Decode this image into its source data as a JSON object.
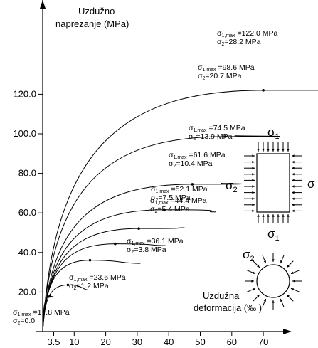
{
  "chart_data": {
    "type": "line",
    "ylabel_line1": "Uzdužno",
    "ylabel_line2": "naprezanje (MPa)",
    "xlabel_line1": "Uzdužna",
    "xlabel_line2": "deformacija (‰ )",
    "x_ticks": [
      "3.5",
      "10",
      "20",
      "30",
      "40",
      "50",
      "60",
      "70"
    ],
    "y_ticks": [
      "20.0",
      "40.0",
      "60.0",
      "80.0",
      "100.0",
      "120.0"
    ],
    "xlim": [
      0,
      75
    ],
    "ylim": [
      0,
      130
    ],
    "series": [
      {
        "sigma1_max": "17.8 MPa",
        "sigma2": "0.0",
        "peak": [
          2.2,
          17.8
        ],
        "end": [
          3.5,
          17.5
        ]
      },
      {
        "sigma1_max": "23.6 MPa",
        "sigma2": "1.2 MPa",
        "peak": [
          8.0,
          23.6
        ],
        "end": [
          15.0,
          21.0
        ]
      },
      {
        "sigma1_max": "36.1 MPa",
        "sigma2": "3.8 MPa",
        "peak": [
          15.0,
          36.1
        ],
        "end": [
          31.0,
          34.5
        ]
      },
      {
        "sigma1_max": "44.4 MPa",
        "sigma2": "5.4 MPa",
        "peak": [
          23.0,
          44.4
        ],
        "end": [
          39.0,
          43.5
        ]
      },
      {
        "sigma1_max": "52.1 MPa",
        "sigma2": "7.5 MPa",
        "peak": [
          30.5,
          52.1
        ],
        "end": [
          45.0,
          52.5
        ]
      },
      {
        "sigma1_max": "61.6 MPa",
        "sigma2": "10.4 MPa",
        "peak": [
          38.5,
          61.6
        ],
        "end": [
          55.0,
          60.5
        ]
      },
      {
        "sigma1_max": "74.5 MPa",
        "sigma2": "13.9 MPa",
        "peak": [
          47.5,
          74.5
        ],
        "end": [
          57.0,
          75.0
        ]
      },
      {
        "sigma1_max": "98.6 MPa",
        "sigma2": "20.7 MPa",
        "peak": [
          58.0,
          98.6
        ],
        "end": [
          61.0,
          99.0
        ]
      },
      {
        "sigma1_max": "122.0 MPa",
        "sigma2": "28.2 MPa",
        "peak": [
          70.0,
          122.0
        ],
        "end": [
          72.0,
          122.0
        ]
      }
    ]
  },
  "inset": {
    "sigma1_label": "σ",
    "sigma1_sub": "1",
    "sigma2_label": "σ",
    "sigma2_sub": "2",
    "sigma3_label": "σ"
  }
}
